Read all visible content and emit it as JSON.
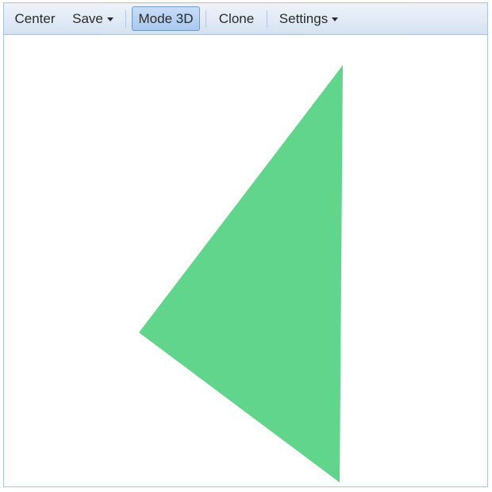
{
  "toolbar": {
    "center_label": "Center",
    "save_label": "Save",
    "mode3d_label": "Mode 3D",
    "clone_label": "Clone",
    "settings_label": "Settings"
  },
  "canvas": {
    "shape": "triangle",
    "fill_color": "#61d58c"
  }
}
